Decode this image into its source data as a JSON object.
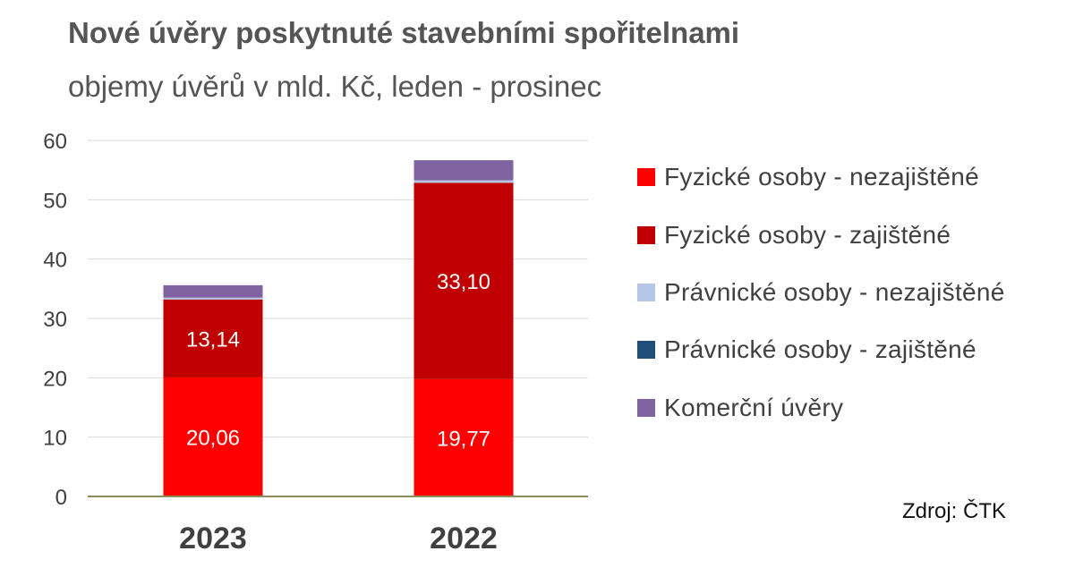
{
  "title": "Nové úvěry poskytnuté stavebními spořitelnami",
  "subtitle": "objemy úvěrů v mld. Kč, leden - prosinec",
  "source": "Zdroj: ČTK",
  "chart_data": {
    "type": "bar",
    "stacked": true,
    "categories": [
      "2023",
      "2022"
    ],
    "ylim": [
      0,
      60
    ],
    "yticks": [
      0,
      10,
      20,
      30,
      40,
      50,
      60
    ],
    "grid": true,
    "legend_position": "right",
    "series": [
      {
        "name": "Fyzické osoby - nezajištěné",
        "color": "#ff0000",
        "values": [
          20.06,
          19.77
        ],
        "labels": [
          "20,06",
          "19,77"
        ]
      },
      {
        "name": "Fyzické osoby - zajištěné",
        "color": "#c00000",
        "values": [
          13.14,
          33.1
        ],
        "labels": [
          "13,14",
          "33,10"
        ]
      },
      {
        "name": "Právnické osoby - nezajištěné",
        "color": "#b4c7e7",
        "values": [
          0.3,
          0.4
        ]
      },
      {
        "name": "Právnické osoby - zajištěné",
        "color": "#1f4e79",
        "values": [
          0.0,
          0.0
        ]
      },
      {
        "name": "Komerční úvěry",
        "color": "#8064a2",
        "values": [
          2.1,
          3.4
        ]
      }
    ]
  }
}
